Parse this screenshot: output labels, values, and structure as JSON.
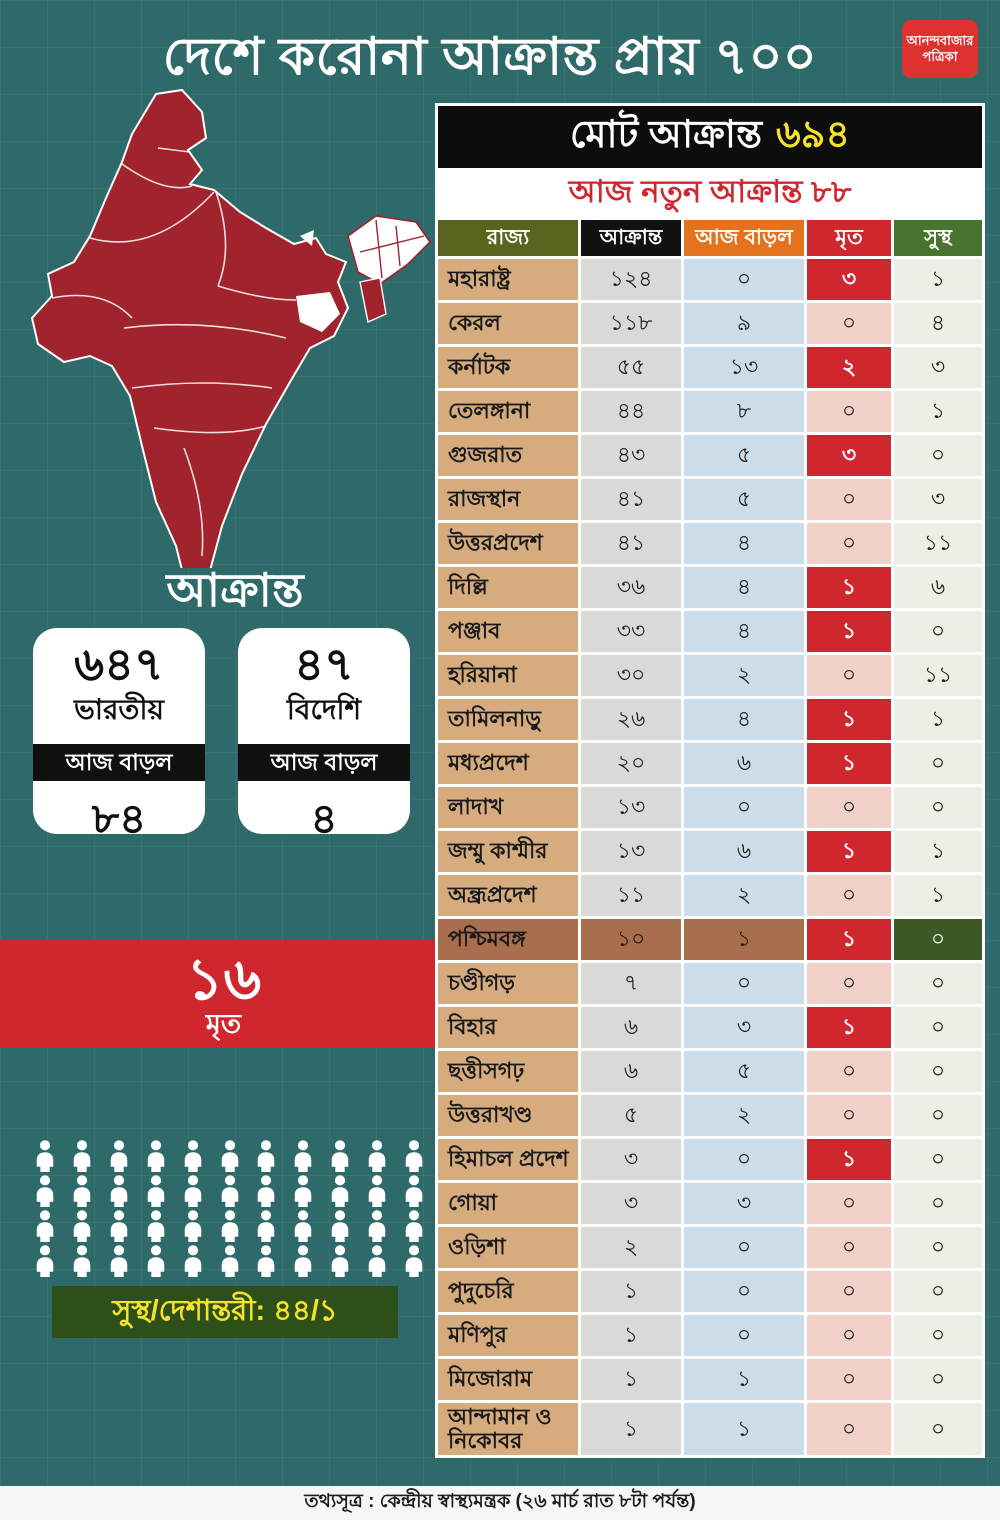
{
  "page": {
    "title": "দেশে করোনা আক্রান্ত প্রায় ৭০০",
    "logo_line1": "আনন্দবাজার",
    "logo_line2": "পত্রিকা"
  },
  "left": {
    "affected_heading": "আক্রান্ত",
    "cards": [
      {
        "value": "৬৪৭",
        "label": "ভারতীয়",
        "delta_label": "আজ বাড়ল",
        "delta": "৮৪"
      },
      {
        "value": "৪৭",
        "label": "বিদেশি",
        "delta_label": "আজ বাড়ল",
        "delta": "৪"
      }
    ],
    "deaths": {
      "value": "১৬",
      "label": "মৃত"
    },
    "pictogram": {
      "count": 44,
      "per_row": 11
    },
    "recovered_text": "সুস্থ/দেশান্তরী: ৪৪/১"
  },
  "table": {
    "total_label": "মোট আক্রান্ত",
    "total_value": "৬৯৪",
    "new_label": "আজ নতুন আক্রান্ত ৮৮",
    "headers": [
      "রাজ্য",
      "আক্রান্ত",
      "আজ বাড়ল",
      "মৃত",
      "সুস্থ"
    ],
    "highlight_row_index": 15
  },
  "chart_data": {
    "type": "table",
    "title": "মোট আক্রান্ত ৬৯৪",
    "subtitle": "আজ নতুন আক্রান্ত ৮৮",
    "columns": [
      "রাজ্য",
      "আক্রান্ত",
      "আজ বাড়ল",
      "মৃত",
      "সুস্থ"
    ],
    "rows": [
      [
        "মহারাষ্ট্র",
        124,
        0,
        3,
        1
      ],
      [
        "কেরল",
        118,
        9,
        0,
        4
      ],
      [
        "কর্নাটক",
        55,
        13,
        2,
        3
      ],
      [
        "তেলঙ্গানা",
        44,
        8,
        0,
        1
      ],
      [
        "গুজরাত",
        43,
        5,
        3,
        0
      ],
      [
        "রাজস্থান",
        41,
        5,
        0,
        3
      ],
      [
        "উত্তরপ্রদেশ",
        41,
        4,
        0,
        11
      ],
      [
        "দিল্লি",
        36,
        4,
        1,
        6
      ],
      [
        "পঞ্জাব",
        33,
        4,
        1,
        0
      ],
      [
        "হরিয়ানা",
        30,
        2,
        0,
        11
      ],
      [
        "তামিলনাড়ু",
        26,
        4,
        1,
        1
      ],
      [
        "মধ্যপ্রদেশ",
        20,
        6,
        1,
        0
      ],
      [
        "লাদাখ",
        13,
        0,
        0,
        0
      ],
      [
        "জম্মু কাশ্মীর",
        13,
        6,
        1,
        1
      ],
      [
        "অন্ধ্রপ্রদেশ",
        11,
        2,
        0,
        1
      ],
      [
        "পশ্চিমবঙ্গ",
        10,
        1,
        1,
        0
      ],
      [
        "চণ্ডীগড়",
        7,
        0,
        0,
        0
      ],
      [
        "বিহার",
        6,
        3,
        1,
        0
      ],
      [
        "ছত্তীসগঢ়",
        6,
        5,
        0,
        0
      ],
      [
        "উত্তরাখণ্ড",
        5,
        2,
        0,
        0
      ],
      [
        "হিমাচল প্রদেশ",
        3,
        0,
        1,
        0
      ],
      [
        "গোয়া",
        3,
        3,
        0,
        0
      ],
      [
        "ওড়িশা",
        2,
        0,
        0,
        0
      ],
      [
        "পুদুচেরি",
        1,
        0,
        0,
        0
      ],
      [
        "মণিপুর",
        1,
        0,
        0,
        0
      ],
      [
        "মিজোরাম",
        1,
        1,
        0,
        0
      ],
      [
        "আন্দামান ও নিকোবর",
        1,
        1,
        0,
        0
      ]
    ],
    "totals": {
      "total_affected": 694,
      "new_today": 88,
      "deaths": 16,
      "indian": 647,
      "indian_new_today": 84,
      "foreign": 47,
      "foreign_new_today": 4,
      "recovered_migrated": "44/1"
    },
    "highlighted_row": "পশ্চিমবঙ্গ",
    "legend_position": "none",
    "grid": false
  },
  "footer": {
    "text": "তথ্যসূত্র : কেন্দ্রীয় স্বাস্থ্যমন্ত্রক (২৬ মার্চ রাত ৮টা পর্যন্ত)"
  },
  "palette": {
    "bg": "#2e6a69",
    "logo_red": "#e03131",
    "map_red": "#a0232e",
    "banner_red": "#d0262e",
    "yellow": "#f3e32a",
    "tan": "#d6ab7e",
    "olive": "#59641e",
    "orange": "#e4731f",
    "green": "#47742e",
    "brown": "#a96e4d",
    "dark_green": "#3c5a25",
    "box_green": "#2f4f1a"
  }
}
